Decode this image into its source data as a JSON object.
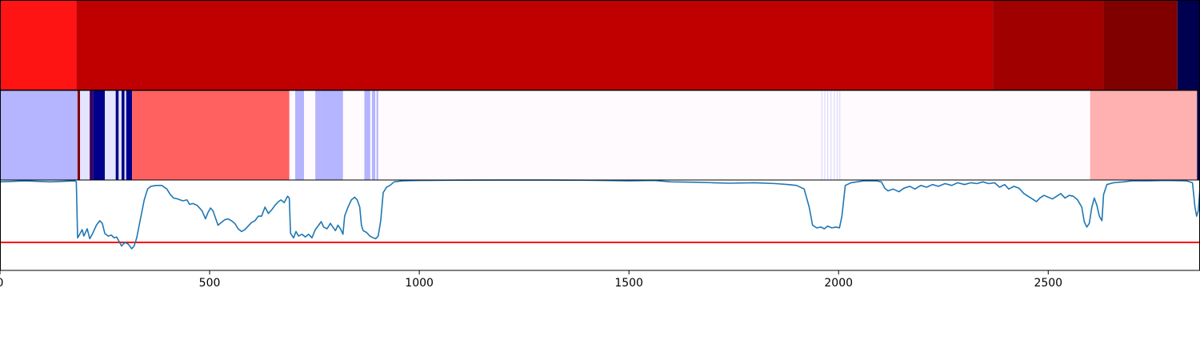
{
  "chart_data": [
    {
      "type": "heatmap",
      "xlim": [
        0,
        2862
      ],
      "segments": [
        {
          "start": 0,
          "end": 182,
          "color": "#ff1414"
        },
        {
          "start": 182,
          "end": 2368,
          "color": "#c00000"
        },
        {
          "start": 2368,
          "end": 2632,
          "color": "#a00000"
        },
        {
          "start": 2632,
          "end": 2808,
          "color": "#800000"
        },
        {
          "start": 2808,
          "end": 2862,
          "color": "#000050"
        }
      ]
    },
    {
      "type": "heatmap",
      "xlim": [
        0,
        2862
      ],
      "background": "#fffafe",
      "segments": [
        {
          "start": 0,
          "end": 185,
          "color": "#b4b4ff"
        },
        {
          "start": 185,
          "end": 191,
          "color": "#800000"
        },
        {
          "start": 191,
          "end": 214,
          "color": "#e4e4ff"
        },
        {
          "start": 214,
          "end": 222,
          "color": "#3c0060"
        },
        {
          "start": 222,
          "end": 250,
          "color": "#00008a"
        },
        {
          "start": 250,
          "end": 276,
          "color": "#e4e4ff"
        },
        {
          "start": 276,
          "end": 283,
          "color": "#00008a"
        },
        {
          "start": 283,
          "end": 290,
          "color": "#e4e4ff"
        },
        {
          "start": 290,
          "end": 297,
          "color": "#00008a"
        },
        {
          "start": 297,
          "end": 301,
          "color": "#e4e4ff"
        },
        {
          "start": 301,
          "end": 315,
          "color": "#00008a"
        },
        {
          "start": 315,
          "end": 690,
          "color": "#ff6060"
        },
        {
          "start": 704,
          "end": 725,
          "color": "#b4b4ff"
        },
        {
          "start": 752,
          "end": 765,
          "color": "#b4b4ff"
        },
        {
          "start": 765,
          "end": 818,
          "color": "#b4b4ff"
        },
        {
          "start": 869,
          "end": 883,
          "color": "#b4b4ff"
        },
        {
          "start": 887,
          "end": 895,
          "color": "#b4b4ff"
        },
        {
          "start": 898,
          "end": 902,
          "color": "#b4b4ff"
        },
        {
          "start": 1959,
          "end": 1961,
          "color": "#d8d8ff"
        },
        {
          "start": 1966,
          "end": 1968,
          "color": "#d8d8ff"
        },
        {
          "start": 1973,
          "end": 1975,
          "color": "#d8d8ff"
        },
        {
          "start": 1981,
          "end": 1983,
          "color": "#d8d8ff"
        },
        {
          "start": 1989,
          "end": 1991,
          "color": "#d8d8ff"
        },
        {
          "start": 1996,
          "end": 1998,
          "color": "#d8d8ff"
        },
        {
          "start": 2002,
          "end": 2004,
          "color": "#d8d8ff"
        },
        {
          "start": 2600,
          "end": 2855,
          "color": "#ffb0b0"
        },
        {
          "start": 2855,
          "end": 2862,
          "color": "#000050"
        }
      ]
    },
    {
      "type": "line",
      "xlim": [
        0,
        2862
      ],
      "ylim": [
        0,
        1
      ],
      "x_ticks": [
        "0",
        "500",
        "1000",
        "1500",
        "2000",
        "2500"
      ],
      "x_tick_values": [
        0,
        500,
        1000,
        1500,
        2000,
        2500
      ],
      "threshold": 0.31,
      "threshold_color": "#ff0000",
      "line_color": "#1f77b4",
      "series": [
        {
          "values": [
            [
              0,
              0.98
            ],
            [
              60,
              0.99
            ],
            [
              120,
              0.98
            ],
            [
              178,
              0.99
            ],
            [
              182,
              0.98
            ],
            [
              185,
              0.36
            ],
            [
              190,
              0.4
            ],
            [
              196,
              0.45
            ],
            [
              200,
              0.38
            ],
            [
              208,
              0.46
            ],
            [
              214,
              0.35
            ],
            [
              220,
              0.4
            ],
            [
              230,
              0.5
            ],
            [
              238,
              0.55
            ],
            [
              244,
              0.52
            ],
            [
              250,
              0.41
            ],
            [
              258,
              0.38
            ],
            [
              266,
              0.39
            ],
            [
              272,
              0.36
            ],
            [
              278,
              0.37
            ],
            [
              283,
              0.33
            ],
            [
              290,
              0.27
            ],
            [
              298,
              0.31
            ],
            [
              306,
              0.29
            ],
            [
              314,
              0.24
            ],
            [
              320,
              0.27
            ],
            [
              326,
              0.36
            ],
            [
              334,
              0.55
            ],
            [
              344,
              0.78
            ],
            [
              352,
              0.9
            ],
            [
              360,
              0.93
            ],
            [
              372,
              0.94
            ],
            [
              386,
              0.94
            ],
            [
              398,
              0.9
            ],
            [
              406,
              0.84
            ],
            [
              414,
              0.8
            ],
            [
              424,
              0.79
            ],
            [
              436,
              0.77
            ],
            [
              446,
              0.78
            ],
            [
              452,
              0.73
            ],
            [
              460,
              0.74
            ],
            [
              470,
              0.72
            ],
            [
              482,
              0.66
            ],
            [
              490,
              0.57
            ],
            [
              496,
              0.64
            ],
            [
              502,
              0.69
            ],
            [
              508,
              0.66
            ],
            [
              514,
              0.58
            ],
            [
              520,
              0.5
            ],
            [
              528,
              0.53
            ],
            [
              536,
              0.56
            ],
            [
              544,
              0.57
            ],
            [
              552,
              0.55
            ],
            [
              560,
              0.52
            ],
            [
              568,
              0.46
            ],
            [
              576,
              0.43
            ],
            [
              584,
              0.45
            ],
            [
              592,
              0.49
            ],
            [
              600,
              0.53
            ],
            [
              608,
              0.55
            ],
            [
              616,
              0.6
            ],
            [
              624,
              0.6
            ],
            [
              632,
              0.7
            ],
            [
              640,
              0.63
            ],
            [
              648,
              0.67
            ],
            [
              656,
              0.72
            ],
            [
              664,
              0.76
            ],
            [
              670,
              0.78
            ],
            [
              678,
              0.75
            ],
            [
              686,
              0.82
            ],
            [
              690,
              0.8
            ],
            [
              693,
              0.41
            ],
            [
              700,
              0.36
            ],
            [
              706,
              0.43
            ],
            [
              712,
              0.38
            ],
            [
              720,
              0.4
            ],
            [
              728,
              0.37
            ],
            [
              736,
              0.4
            ],
            [
              744,
              0.36
            ],
            [
              752,
              0.45
            ],
            [
              760,
              0.5
            ],
            [
              766,
              0.54
            ],
            [
              772,
              0.48
            ],
            [
              780,
              0.46
            ],
            [
              788,
              0.52
            ],
            [
              794,
              0.48
            ],
            [
              800,
              0.44
            ],
            [
              806,
              0.5
            ],
            [
              812,
              0.46
            ],
            [
              818,
              0.4
            ],
            [
              822,
              0.6
            ],
            [
              830,
              0.7
            ],
            [
              838,
              0.78
            ],
            [
              846,
              0.81
            ],
            [
              852,
              0.78
            ],
            [
              858,
              0.7
            ],
            [
              862,
              0.5
            ],
            [
              866,
              0.44
            ],
            [
              874,
              0.42
            ],
            [
              882,
              0.38
            ],
            [
              890,
              0.36
            ],
            [
              896,
              0.35
            ],
            [
              902,
              0.38
            ],
            [
              908,
              0.55
            ],
            [
              914,
              0.86
            ],
            [
              922,
              0.92
            ],
            [
              930,
              0.94
            ],
            [
              940,
              0.98
            ],
            [
              960,
              0.99
            ],
            [
              1000,
              0.995
            ],
            [
              1100,
              0.998
            ],
            [
              1200,
              0.999
            ],
            [
              1300,
              0.999
            ],
            [
              1400,
              0.997
            ],
            [
              1500,
              0.99
            ],
            [
              1560,
              0.995
            ],
            [
              1600,
              0.98
            ],
            [
              1660,
              0.975
            ],
            [
              1700,
              0.97
            ],
            [
              1740,
              0.965
            ],
            [
              1800,
              0.97
            ],
            [
              1850,
              0.96
            ],
            [
              1880,
              0.95
            ],
            [
              1900,
              0.94
            ],
            [
              1918,
              0.9
            ],
            [
              1930,
              0.7
            ],
            [
              1938,
              0.5
            ],
            [
              1948,
              0.47
            ],
            [
              1958,
              0.48
            ],
            [
              1966,
              0.46
            ],
            [
              1974,
              0.49
            ],
            [
              1984,
              0.47
            ],
            [
              1994,
              0.48
            ],
            [
              2002,
              0.47
            ],
            [
              2008,
              0.6
            ],
            [
              2016,
              0.94
            ],
            [
              2030,
              0.97
            ],
            [
              2060,
              0.99
            ],
            [
              2090,
              0.99
            ],
            [
              2102,
              0.98
            ],
            [
              2110,
              0.91
            ],
            [
              2118,
              0.88
            ],
            [
              2130,
              0.9
            ],
            [
              2144,
              0.87
            ],
            [
              2156,
              0.91
            ],
            [
              2170,
              0.93
            ],
            [
              2182,
              0.9
            ],
            [
              2196,
              0.94
            ],
            [
              2210,
              0.92
            ],
            [
              2224,
              0.95
            ],
            [
              2238,
              0.93
            ],
            [
              2254,
              0.96
            ],
            [
              2270,
              0.94
            ],
            [
              2284,
              0.97
            ],
            [
              2300,
              0.95
            ],
            [
              2316,
              0.97
            ],
            [
              2330,
              0.96
            ],
            [
              2344,
              0.98
            ],
            [
              2358,
              0.96
            ],
            [
              2372,
              0.97
            ],
            [
              2384,
              0.92
            ],
            [
              2396,
              0.95
            ],
            [
              2406,
              0.9
            ],
            [
              2418,
              0.93
            ],
            [
              2430,
              0.91
            ],
            [
              2442,
              0.85
            ],
            [
              2452,
              0.82
            ],
            [
              2462,
              0.79
            ],
            [
              2472,
              0.76
            ],
            [
              2480,
              0.8
            ],
            [
              2490,
              0.83
            ],
            [
              2500,
              0.81
            ],
            [
              2510,
              0.79
            ],
            [
              2520,
              0.82
            ],
            [
              2530,
              0.85
            ],
            [
              2540,
              0.8
            ],
            [
              2550,
              0.83
            ],
            [
              2560,
              0.82
            ],
            [
              2570,
              0.78
            ],
            [
              2580,
              0.7
            ],
            [
              2586,
              0.54
            ],
            [
              2592,
              0.48
            ],
            [
              2598,
              0.52
            ],
            [
              2604,
              0.7
            ],
            [
              2610,
              0.8
            ],
            [
              2616,
              0.72
            ],
            [
              2622,
              0.6
            ],
            [
              2628,
              0.55
            ],
            [
              2632,
              0.84
            ],
            [
              2640,
              0.95
            ],
            [
              2656,
              0.97
            ],
            [
              2680,
              0.98
            ],
            [
              2700,
              0.99
            ],
            [
              2740,
              0.99
            ],
            [
              2780,
              0.995
            ],
            [
              2830,
              0.99
            ],
            [
              2844,
              0.97
            ],
            [
              2850,
              0.7
            ],
            [
              2854,
              0.6
            ],
            [
              2858,
              0.66
            ],
            [
              2862,
              0.92
            ]
          ]
        }
      ]
    }
  ]
}
